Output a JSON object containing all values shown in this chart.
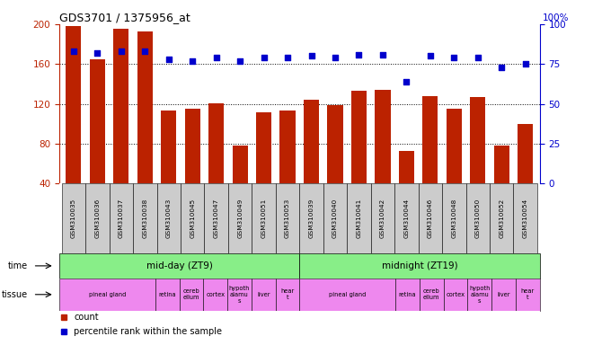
{
  "title": "GDS3701 / 1375956_at",
  "samples": [
    "GSM310035",
    "GSM310036",
    "GSM310037",
    "GSM310038",
    "GSM310043",
    "GSM310045",
    "GSM310047",
    "GSM310049",
    "GSM310051",
    "GSM310053",
    "GSM310039",
    "GSM310040",
    "GSM310041",
    "GSM310042",
    "GSM310044",
    "GSM310046",
    "GSM310048",
    "GSM310050",
    "GSM310052",
    "GSM310054"
  ],
  "counts": [
    198,
    165,
    195,
    193,
    113,
    115,
    121,
    78,
    112,
    113,
    124,
    119,
    133,
    134,
    73,
    128,
    115,
    127,
    78,
    100
  ],
  "percentile": [
    83,
    82,
    83,
    83,
    78,
    77,
    79,
    77,
    79,
    79,
    80,
    79,
    81,
    81,
    64,
    80,
    79,
    79,
    73,
    75
  ],
  "bar_color": "#bb2200",
  "dot_color": "#0000cc",
  "ylim_left": [
    40,
    200
  ],
  "ylim_right": [
    0,
    100
  ],
  "yticks_left": [
    40,
    80,
    120,
    160,
    200
  ],
  "yticks_right": [
    0,
    25,
    50,
    75,
    100
  ],
  "time_groups": [
    {
      "label": "mid-day (ZT9)",
      "start": 0,
      "end": 10,
      "color": "#88ee88"
    },
    {
      "label": "midnight (ZT19)",
      "start": 10,
      "end": 20,
      "color": "#88ee88"
    }
  ],
  "tissue_groups": [
    {
      "label": "pineal gland",
      "start": 0,
      "end": 4
    },
    {
      "label": "retina",
      "start": 4,
      "end": 5
    },
    {
      "label": "cereb\nellum",
      "start": 5,
      "end": 6
    },
    {
      "label": "cortex",
      "start": 6,
      "end": 7
    },
    {
      "label": "hypoth\nalamu\ns",
      "start": 7,
      "end": 8
    },
    {
      "label": "liver",
      "start": 8,
      "end": 9
    },
    {
      "label": "hear\nt",
      "start": 9,
      "end": 10
    },
    {
      "label": "pineal gland",
      "start": 10,
      "end": 14
    },
    {
      "label": "retina",
      "start": 14,
      "end": 15
    },
    {
      "label": "cereb\nellum",
      "start": 15,
      "end": 16
    },
    {
      "label": "cortex",
      "start": 16,
      "end": 17
    },
    {
      "label": "hypoth\nalamu\ns",
      "start": 17,
      "end": 18
    },
    {
      "label": "liver",
      "start": 18,
      "end": 19
    },
    {
      "label": "hear\nt",
      "start": 19,
      "end": 20
    }
  ],
  "tissue_color": "#ee88ee",
  "background_color": "#ffffff",
  "axis_color_left": "#bb2200",
  "axis_color_right": "#0000cc",
  "label_bg_color": "#cccccc"
}
